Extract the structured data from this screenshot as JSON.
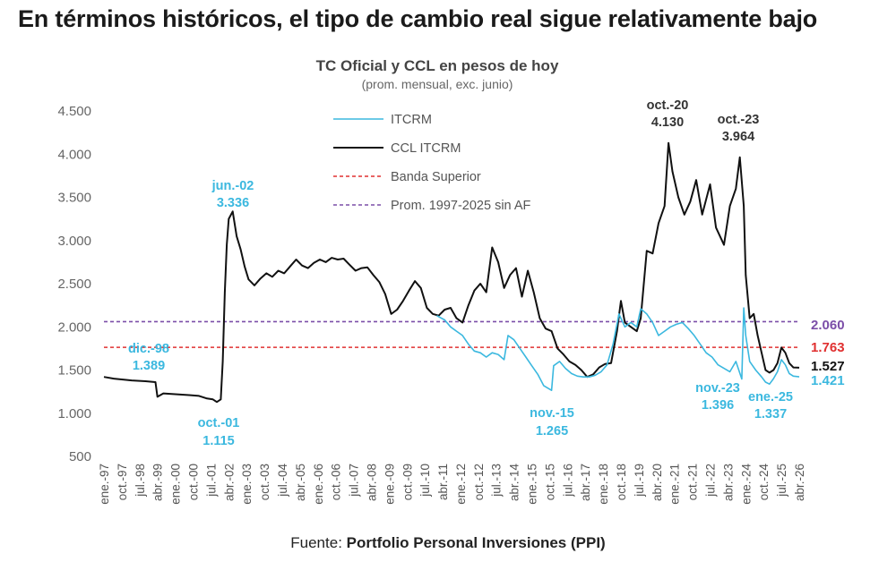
{
  "headline": "En términos históricos, el tipo de cambio real sigue relativamente bajo",
  "source": {
    "prefix": "Fuente: ",
    "name": "Portfolio Personal Inversiones (PPI)"
  },
  "colors": {
    "itcrm": "#3BB8DF",
    "ccl": "#111111",
    "banda": "#E03030",
    "prom": "#7B4EA8"
  },
  "chart_data": {
    "type": "line",
    "title": "TC Oficial y CCL en pesos de hoy",
    "subtitle": "(prom. mensual, exc. junio)",
    "ylim": [
      500,
      4500
    ],
    "yticks": [
      "500",
      "1.000",
      "1.500",
      "2.000",
      "2.500",
      "3.000",
      "3.500",
      "4.000",
      "4.500"
    ],
    "xlim": [
      "1997-01",
      "2026-04"
    ],
    "xticks": [
      "ene.-97",
      "oct.-97",
      "jul.-98",
      "abr.-99",
      "ene.-00",
      "oct.-00",
      "jul.-01",
      "abr.-02",
      "ene.-03",
      "oct.-03",
      "jul.-04",
      "abr.-05",
      "ene.-06",
      "oct.-06",
      "jul.-07",
      "abr.-08",
      "ene.-09",
      "oct.-09",
      "jul.-10",
      "abr.-11",
      "ene.-12",
      "oct.-12",
      "jul.-13",
      "abr.-14",
      "ene.-15",
      "oct.-15",
      "jul.-16",
      "abr.-17",
      "ene.-18",
      "oct.-18",
      "jul.-19",
      "abr.-20",
      "ene.-21",
      "oct.-21",
      "jul.-22",
      "abr.-23",
      "ene.-24",
      "oct.-24",
      "jul.-25",
      "abr.-26"
    ],
    "grid": false,
    "legend": "top-center",
    "series": [
      {
        "name": "CCL ITCRM",
        "points": [
          [
            "1997-01",
            1420
          ],
          [
            "1997-06",
            1400
          ],
          [
            "1998-03",
            1380
          ],
          [
            "1998-10",
            1370
          ],
          [
            "1999-03",
            1360
          ],
          [
            "1999-04",
            1190
          ],
          [
            "1999-07",
            1230
          ],
          [
            "2000-01",
            1220
          ],
          [
            "2000-08",
            1210
          ],
          [
            "2001-01",
            1200
          ],
          [
            "2001-05",
            1170
          ],
          [
            "2001-08",
            1160
          ],
          [
            "2001-10",
            1130
          ],
          [
            "2001-12",
            1160
          ],
          [
            "2002-01",
            1600
          ],
          [
            "2002-02",
            2400
          ],
          [
            "2002-03",
            2950
          ],
          [
            "2002-04",
            3250
          ],
          [
            "2002-06",
            3336
          ],
          [
            "2002-08",
            3050
          ],
          [
            "2002-10",
            2900
          ],
          [
            "2002-12",
            2700
          ],
          [
            "2003-02",
            2550
          ],
          [
            "2003-05",
            2480
          ],
          [
            "2003-08",
            2560
          ],
          [
            "2003-11",
            2620
          ],
          [
            "2004-02",
            2580
          ],
          [
            "2004-05",
            2650
          ],
          [
            "2004-08",
            2620
          ],
          [
            "2004-11",
            2700
          ],
          [
            "2005-02",
            2780
          ],
          [
            "2005-05",
            2710
          ],
          [
            "2005-08",
            2680
          ],
          [
            "2005-11",
            2740
          ],
          [
            "2006-02",
            2780
          ],
          [
            "2006-05",
            2750
          ],
          [
            "2006-08",
            2800
          ],
          [
            "2006-11",
            2780
          ],
          [
            "2007-02",
            2790
          ],
          [
            "2007-05",
            2720
          ],
          [
            "2007-08",
            2650
          ],
          [
            "2007-11",
            2680
          ],
          [
            "2008-02",
            2690
          ],
          [
            "2008-05",
            2600
          ],
          [
            "2008-08",
            2520
          ],
          [
            "2008-11",
            2380
          ],
          [
            "2009-02",
            2150
          ],
          [
            "2009-05",
            2200
          ],
          [
            "2009-08",
            2300
          ],
          [
            "2009-11",
            2420
          ],
          [
            "2010-02",
            2530
          ],
          [
            "2010-05",
            2450
          ],
          [
            "2010-08",
            2220
          ],
          [
            "2010-11",
            2150
          ],
          [
            "2011-02",
            2130
          ],
          [
            "2011-05",
            2200
          ],
          [
            "2011-08",
            2220
          ],
          [
            "2011-11",
            2100
          ],
          [
            "2012-02",
            2050
          ],
          [
            "2012-05",
            2250
          ],
          [
            "2012-08",
            2420
          ],
          [
            "2012-11",
            2500
          ],
          [
            "2013-02",
            2400
          ],
          [
            "2013-05",
            2920
          ],
          [
            "2013-08",
            2750
          ],
          [
            "2013-11",
            2450
          ],
          [
            "2014-02",
            2600
          ],
          [
            "2014-05",
            2680
          ],
          [
            "2014-08",
            2350
          ],
          [
            "2014-11",
            2650
          ],
          [
            "2015-02",
            2400
          ],
          [
            "2015-05",
            2100
          ],
          [
            "2015-08",
            1980
          ],
          [
            "2015-11",
            1950
          ],
          [
            "2016-02",
            1750
          ],
          [
            "2016-05",
            1680
          ],
          [
            "2016-08",
            1600
          ],
          [
            "2016-11",
            1560
          ],
          [
            "2017-02",
            1500
          ],
          [
            "2017-05",
            1420
          ],
          [
            "2017-08",
            1450
          ],
          [
            "2017-11",
            1530
          ],
          [
            "2018-02",
            1570
          ],
          [
            "2018-05",
            1580
          ],
          [
            "2018-08",
            1950
          ],
          [
            "2018-10",
            2300
          ],
          [
            "2018-12",
            2050
          ],
          [
            "2019-03",
            2000
          ],
          [
            "2019-06",
            1950
          ],
          [
            "2019-08",
            2100
          ],
          [
            "2019-11",
            2880
          ],
          [
            "2020-02",
            2850
          ],
          [
            "2020-05",
            3200
          ],
          [
            "2020-08",
            3400
          ],
          [
            "2020-10",
            4130
          ],
          [
            "2020-12",
            3800
          ],
          [
            "2021-03",
            3500
          ],
          [
            "2021-06",
            3300
          ],
          [
            "2021-09",
            3450
          ],
          [
            "2021-12",
            3700
          ],
          [
            "2022-03",
            3300
          ],
          [
            "2022-07",
            3650
          ],
          [
            "2022-10",
            3150
          ],
          [
            "2023-02",
            2950
          ],
          [
            "2023-05",
            3400
          ],
          [
            "2023-08",
            3600
          ],
          [
            "2023-10",
            3964
          ],
          [
            "2023-12",
            3400
          ],
          [
            "2024-01",
            2600
          ],
          [
            "2024-03",
            2100
          ],
          [
            "2024-05",
            2150
          ],
          [
            "2024-07",
            1900
          ],
          [
            "2024-09",
            1700
          ],
          [
            "2024-11",
            1500
          ],
          [
            "2025-01",
            1470
          ],
          [
            "2025-03",
            1500
          ],
          [
            "2025-05",
            1580
          ],
          [
            "2025-07",
            1760
          ],
          [
            "2025-09",
            1700
          ],
          [
            "2025-11",
            1580
          ],
          [
            "2026-01",
            1530
          ],
          [
            "2026-04",
            1527
          ]
        ]
      },
      {
        "name": "ITCRM",
        "points": [
          [
            "2011-01",
            2130
          ],
          [
            "2011-05",
            2080
          ],
          [
            "2011-08",
            2000
          ],
          [
            "2011-11",
            1950
          ],
          [
            "2012-02",
            1900
          ],
          [
            "2012-05",
            1800
          ],
          [
            "2012-08",
            1720
          ],
          [
            "2012-11",
            1700
          ],
          [
            "2013-02",
            1650
          ],
          [
            "2013-05",
            1700
          ],
          [
            "2013-08",
            1680
          ],
          [
            "2013-11",
            1620
          ],
          [
            "2014-01",
            1900
          ],
          [
            "2014-04",
            1850
          ],
          [
            "2014-07",
            1750
          ],
          [
            "2014-10",
            1650
          ],
          [
            "2015-01",
            1550
          ],
          [
            "2015-04",
            1450
          ],
          [
            "2015-07",
            1320
          ],
          [
            "2015-11",
            1265
          ],
          [
            "2015-12",
            1550
          ],
          [
            "2016-03",
            1600
          ],
          [
            "2016-06",
            1520
          ],
          [
            "2016-09",
            1460
          ],
          [
            "2016-12",
            1430
          ],
          [
            "2017-03",
            1420
          ],
          [
            "2017-06",
            1420
          ],
          [
            "2017-09",
            1440
          ],
          [
            "2017-12",
            1480
          ],
          [
            "2018-03",
            1560
          ],
          [
            "2018-06",
            1800
          ],
          [
            "2018-09",
            2150
          ],
          [
            "2018-12",
            2000
          ],
          [
            "2019-03",
            2050
          ],
          [
            "2019-06",
            2000
          ],
          [
            "2019-08",
            2210
          ],
          [
            "2019-11",
            2150
          ],
          [
            "2020-02",
            2050
          ],
          [
            "2020-05",
            1900
          ],
          [
            "2020-08",
            1950
          ],
          [
            "2020-11",
            2000
          ],
          [
            "2021-02",
            2030
          ],
          [
            "2021-05",
            2050
          ],
          [
            "2021-08",
            1980
          ],
          [
            "2021-11",
            1900
          ],
          [
            "2022-02",
            1800
          ],
          [
            "2022-05",
            1700
          ],
          [
            "2022-08",
            1650
          ],
          [
            "2022-11",
            1560
          ],
          [
            "2023-02",
            1520
          ],
          [
            "2023-05",
            1480
          ],
          [
            "2023-08",
            1600
          ],
          [
            "2023-11",
            1396
          ],
          [
            "2023-12",
            2220
          ],
          [
            "2024-01",
            1900
          ],
          [
            "2024-03",
            1600
          ],
          [
            "2024-06",
            1500
          ],
          [
            "2024-09",
            1420
          ],
          [
            "2024-11",
            1360
          ],
          [
            "2025-01",
            1337
          ],
          [
            "2025-03",
            1400
          ],
          [
            "2025-05",
            1480
          ],
          [
            "2025-07",
            1620
          ],
          [
            "2025-09",
            1560
          ],
          [
            "2025-11",
            1460
          ],
          [
            "2026-01",
            1430
          ],
          [
            "2026-04",
            1421
          ]
        ]
      },
      {
        "name": "Banda Superior",
        "value": 1763
      },
      {
        "name": "Prom. 1997-2025 sin AF",
        "value": 2060
      }
    ],
    "annotations": [
      {
        "date_label": "dic.-98",
        "value_label": "1.389",
        "x": "1998-12",
        "y": 1389,
        "series": "ITCRM"
      },
      {
        "date_label": "oct.-01",
        "value_label": "1.115",
        "x": "2001-10",
        "y": 1115,
        "series": "ITCRM"
      },
      {
        "date_label": "jun.-02",
        "value_label": "3.336",
        "x": "2002-06",
        "y": 3336,
        "series": "ITCRM"
      },
      {
        "date_label": "nov.-15",
        "value_label": "1.265",
        "x": "2015-11",
        "y": 1265,
        "series": "ITCRM"
      },
      {
        "date_label": "oct.-20",
        "value_label": "4.130",
        "x": "2020-10",
        "y": 4130,
        "series": "CCL ITCRM"
      },
      {
        "date_label": "oct.-23",
        "value_label": "3.964",
        "x": "2023-10",
        "y": 3964,
        "series": "CCL ITCRM"
      },
      {
        "date_label": "nov.-23",
        "value_label": "1.396",
        "x": "2023-11",
        "y": 1396,
        "series": "ITCRM"
      },
      {
        "date_label": "ene.-25",
        "value_label": "1.337",
        "x": "2025-01",
        "y": 1337,
        "series": "ITCRM"
      }
    ],
    "end_labels": [
      {
        "text": "2.060",
        "series": "Prom. 1997-2025 sin AF"
      },
      {
        "text": "1.763",
        "series": "Banda Superior"
      },
      {
        "text": "1.527",
        "series": "CCL ITCRM"
      },
      {
        "text": "1.421",
        "series": "ITCRM"
      }
    ]
  }
}
